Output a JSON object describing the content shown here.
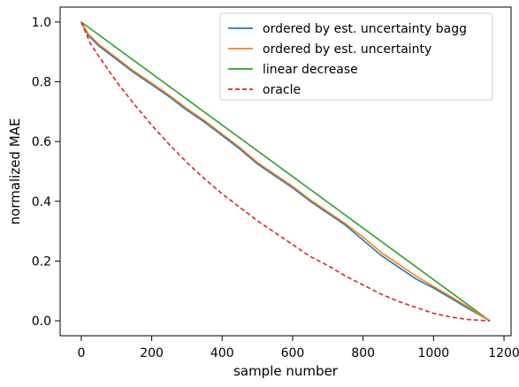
{
  "chart_data": {
    "type": "line",
    "title": "",
    "xlabel": "sample number",
    "ylabel": "normalized MAE",
    "xlim": [
      -60,
      1220
    ],
    "ylim": [
      -0.05,
      1.05
    ],
    "xticks": [
      0,
      200,
      400,
      600,
      800,
      1000,
      1200
    ],
    "yticks": [
      0.0,
      0.2,
      0.4,
      0.6,
      0.8,
      1.0
    ],
    "xtick_labels": [
      "0",
      "200",
      "400",
      "600",
      "800",
      "1000",
      "1200"
    ],
    "ytick_labels": [
      "0.0",
      "0.2",
      "0.4",
      "0.6",
      "0.8",
      "1.0"
    ],
    "grid": false,
    "legend_position": "top-right",
    "series": [
      {
        "name": "ordered by est. uncertainty bagg",
        "color": "#1f77b4",
        "style": "solid",
        "x": [
          0,
          20,
          50,
          100,
          150,
          200,
          250,
          300,
          350,
          400,
          450,
          500,
          550,
          600,
          650,
          700,
          750,
          800,
          850,
          900,
          950,
          1000,
          1050,
          1100,
          1160
        ],
        "y": [
          1.0,
          0.955,
          0.92,
          0.875,
          0.83,
          0.79,
          0.75,
          0.705,
          0.665,
          0.62,
          0.575,
          0.525,
          0.485,
          0.445,
          0.4,
          0.36,
          0.32,
          0.27,
          0.22,
          0.18,
          0.14,
          0.11,
          0.075,
          0.04,
          0.0
        ]
      },
      {
        "name": "ordered by est. uncertainty",
        "color": "#ff7f0e",
        "style": "solid",
        "x": [
          0,
          20,
          50,
          100,
          150,
          200,
          250,
          300,
          350,
          400,
          450,
          500,
          550,
          600,
          650,
          700,
          750,
          800,
          850,
          900,
          950,
          1000,
          1050,
          1100,
          1160
        ],
        "y": [
          1.0,
          0.96,
          0.925,
          0.88,
          0.835,
          0.795,
          0.755,
          0.71,
          0.67,
          0.625,
          0.58,
          0.53,
          0.49,
          0.45,
          0.405,
          0.365,
          0.325,
          0.28,
          0.23,
          0.19,
          0.15,
          0.115,
          0.08,
          0.045,
          0.0
        ]
      },
      {
        "name": "linear decrease",
        "color": "#2ca02c",
        "style": "solid",
        "x": [
          0,
          1160
        ],
        "y": [
          1.0,
          0.0
        ]
      },
      {
        "name": "oracle",
        "color": "#d62728",
        "style": "dashed",
        "x": [
          0,
          25,
          50,
          100,
          150,
          200,
          250,
          300,
          350,
          400,
          450,
          500,
          550,
          600,
          650,
          700,
          750,
          800,
          850,
          900,
          950,
          1000,
          1050,
          1100,
          1160
        ],
        "y": [
          1.0,
          0.93,
          0.885,
          0.8,
          0.725,
          0.655,
          0.59,
          0.53,
          0.475,
          0.425,
          0.38,
          0.335,
          0.295,
          0.255,
          0.215,
          0.185,
          0.15,
          0.12,
          0.09,
          0.065,
          0.045,
          0.025,
          0.012,
          0.004,
          0.0
        ]
      }
    ]
  }
}
